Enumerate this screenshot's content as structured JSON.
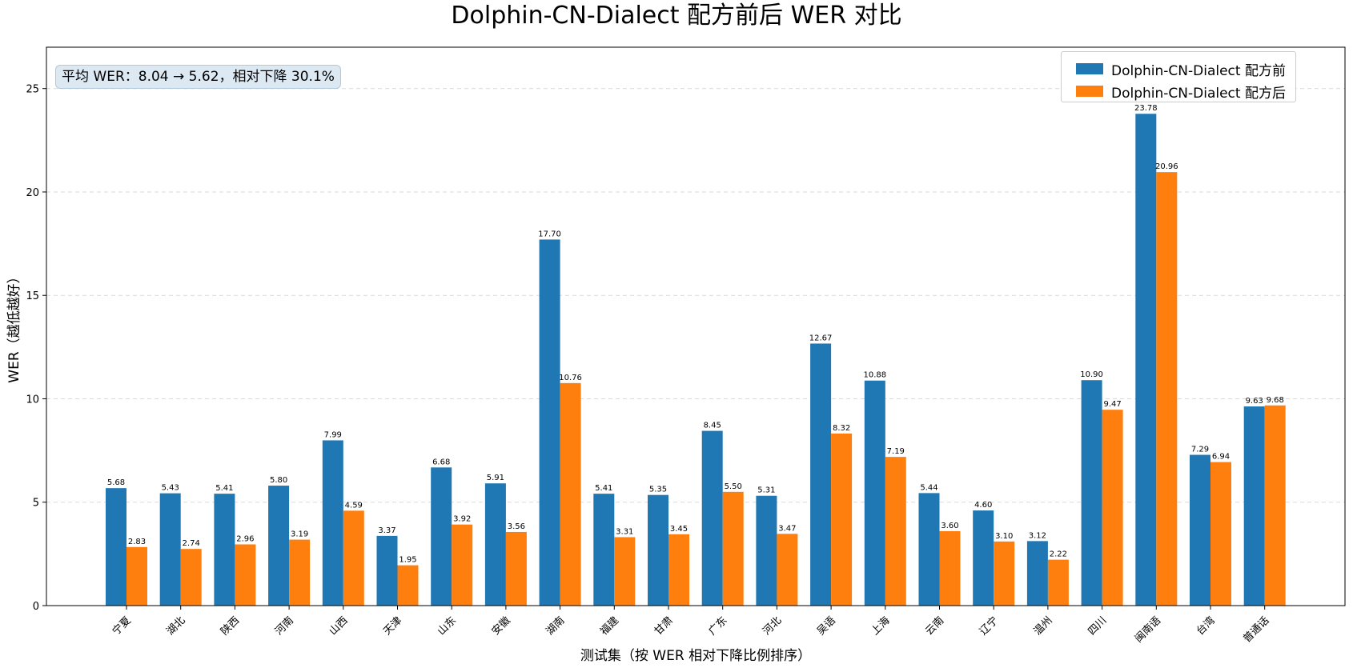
{
  "chart_data": {
    "type": "bar",
    "title": "Dolphin-CN-Dialect 配方前后 WER 对比",
    "xlabel": "测试集（按 WER 相对下降比例排序）",
    "ylabel": "WER（越低越好）",
    "ylim": [
      0,
      27
    ],
    "yticks": [
      0,
      5,
      10,
      15,
      20,
      25
    ],
    "grid": "horizontal dashed",
    "legend_position": "top-right",
    "annotation": "平均 WER：8.04 → 5.62，相对下降 30.1%",
    "categories": [
      "宁夏",
      "湖北",
      "陕西",
      "河南",
      "山西",
      "天津",
      "山东",
      "安徽",
      "湖南",
      "福建",
      "甘肃",
      "广东",
      "河北",
      "吴语",
      "上海",
      "云南",
      "辽宁",
      "温州",
      "四川",
      "闽南语",
      "台湾",
      "普通话"
    ],
    "series": [
      {
        "name": "Dolphin-CN-Dialect 配方前",
        "color": "#1f77b4",
        "values": [
          5.68,
          5.43,
          5.41,
          5.8,
          7.99,
          3.37,
          6.68,
          5.91,
          17.7,
          5.41,
          5.35,
          8.45,
          5.31,
          12.67,
          10.88,
          5.44,
          4.6,
          3.12,
          10.9,
          23.78,
          7.29,
          9.63
        ]
      },
      {
        "name": "Dolphin-CN-Dialect 配方后",
        "color": "#ff7f0e",
        "values": [
          2.83,
          2.74,
          2.96,
          3.19,
          4.59,
          1.95,
          3.92,
          3.56,
          10.76,
          3.31,
          3.45,
          5.5,
          3.47,
          8.32,
          7.19,
          3.6,
          3.1,
          2.22,
          9.47,
          20.96,
          6.94,
          9.68
        ]
      }
    ]
  }
}
